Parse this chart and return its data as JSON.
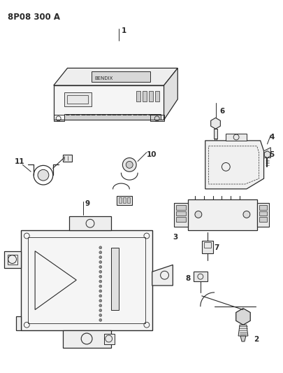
{
  "title": "8P08 300 A",
  "bg_color": "#ffffff",
  "lc": "#2a2a2a",
  "fig_width": 4.05,
  "fig_height": 5.33,
  "dpi": 100
}
